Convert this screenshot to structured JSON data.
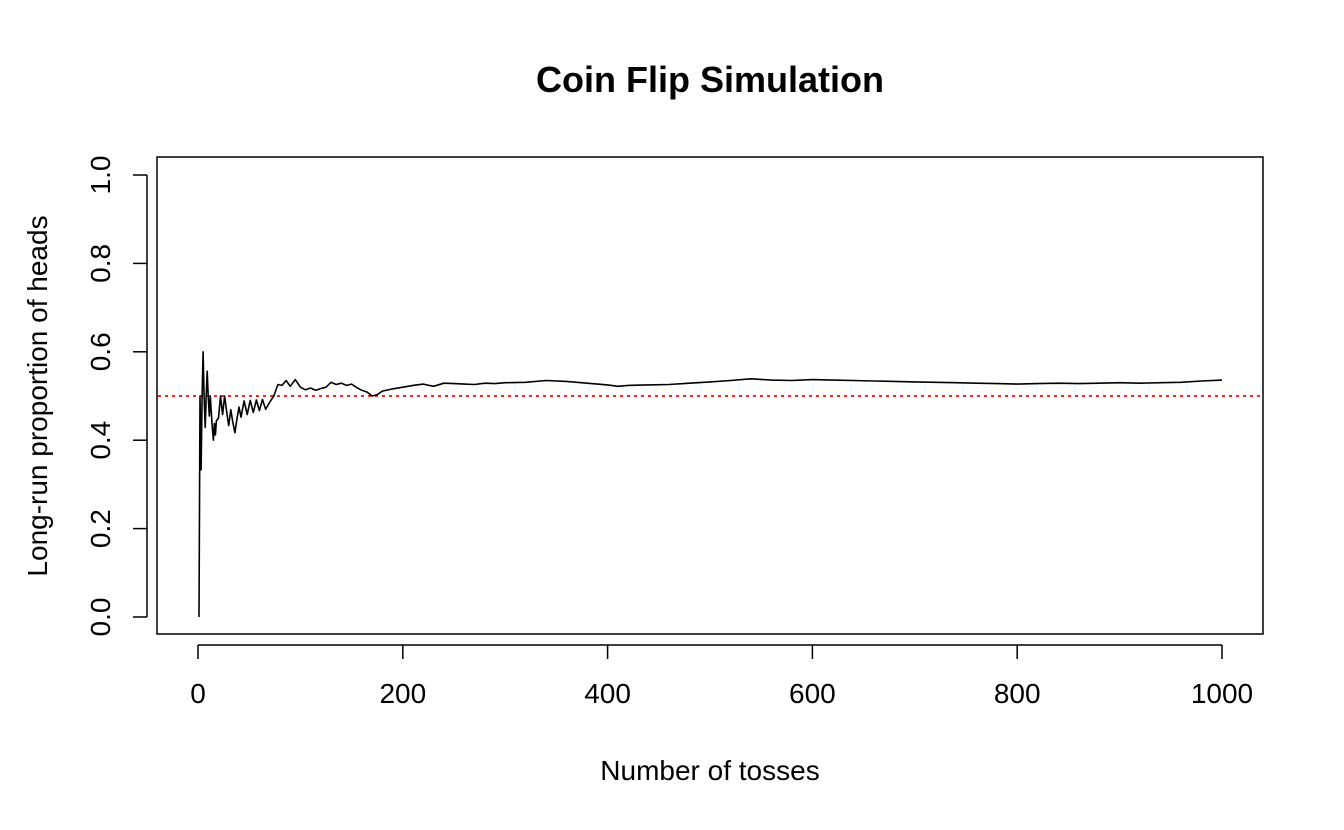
{
  "chart_data": {
    "type": "line",
    "title": "Coin Flip Simulation",
    "xlabel": "Number of tosses",
    "ylabel": "Long-run proportion of heads",
    "xlim": [
      1,
      1000
    ],
    "ylim": [
      0.0,
      1.0
    ],
    "x_ticks": [
      "0",
      "200",
      "400",
      "600",
      "800",
      "1000"
    ],
    "y_ticks": [
      "0.0",
      "0.2",
      "0.4",
      "0.6",
      "0.8",
      "1.0"
    ],
    "grid": false,
    "legend": "none",
    "series": [
      {
        "line_color": "#000000",
        "x": [
          1,
          2,
          3,
          4,
          5,
          6,
          7,
          8,
          9,
          10,
          11,
          12,
          13,
          14,
          15,
          16,
          17,
          18,
          20,
          22,
          24,
          26,
          28,
          30,
          32,
          34,
          36,
          38,
          40,
          42,
          45,
          48,
          51,
          54,
          57,
          60,
          63,
          66,
          70,
          74,
          78,
          82,
          86,
          90,
          95,
          100,
          105,
          110,
          115,
          120,
          125,
          130,
          135,
          140,
          145,
          150,
          155,
          160,
          165,
          170,
          175,
          180,
          190,
          200,
          210,
          220,
          230,
          240,
          250,
          260,
          270,
          280,
          290,
          300,
          320,
          340,
          360,
          380,
          400,
          410,
          420,
          440,
          460,
          480,
          500,
          520,
          540,
          560,
          580,
          600,
          620,
          640,
          660,
          680,
          700,
          720,
          740,
          760,
          780,
          800,
          820,
          840,
          860,
          880,
          900,
          920,
          940,
          960,
          980,
          1000
        ],
        "values": [
          0.0,
          0.5,
          0.333,
          0.5,
          0.6,
          0.5,
          0.429,
          0.5,
          0.556,
          0.5,
          0.455,
          0.5,
          0.462,
          0.429,
          0.4,
          0.438,
          0.412,
          0.444,
          0.45,
          0.5,
          0.458,
          0.5,
          0.464,
          0.433,
          0.469,
          0.441,
          0.417,
          0.447,
          0.475,
          0.452,
          0.489,
          0.458,
          0.49,
          0.463,
          0.491,
          0.467,
          0.492,
          0.47,
          0.486,
          0.5,
          0.526,
          0.524,
          0.535,
          0.522,
          0.537,
          0.52,
          0.514,
          0.518,
          0.513,
          0.517,
          0.52,
          0.531,
          0.526,
          0.529,
          0.524,
          0.527,
          0.519,
          0.513,
          0.509,
          0.5,
          0.503,
          0.511,
          0.516,
          0.52,
          0.524,
          0.527,
          0.522,
          0.529,
          0.528,
          0.527,
          0.526,
          0.529,
          0.528,
          0.53,
          0.531,
          0.535,
          0.533,
          0.529,
          0.525,
          0.522,
          0.524,
          0.525,
          0.526,
          0.529,
          0.532,
          0.535,
          0.539,
          0.536,
          0.535,
          0.537,
          0.536,
          0.535,
          0.534,
          0.533,
          0.532,
          0.531,
          0.53,
          0.529,
          0.528,
          0.527,
          0.528,
          0.529,
          0.528,
          0.529,
          0.53,
          0.529,
          0.53,
          0.531,
          0.534,
          0.536
        ]
      }
    ],
    "reference_line": {
      "y": 0.5,
      "color": "#ff0000",
      "style": "dotted"
    }
  }
}
